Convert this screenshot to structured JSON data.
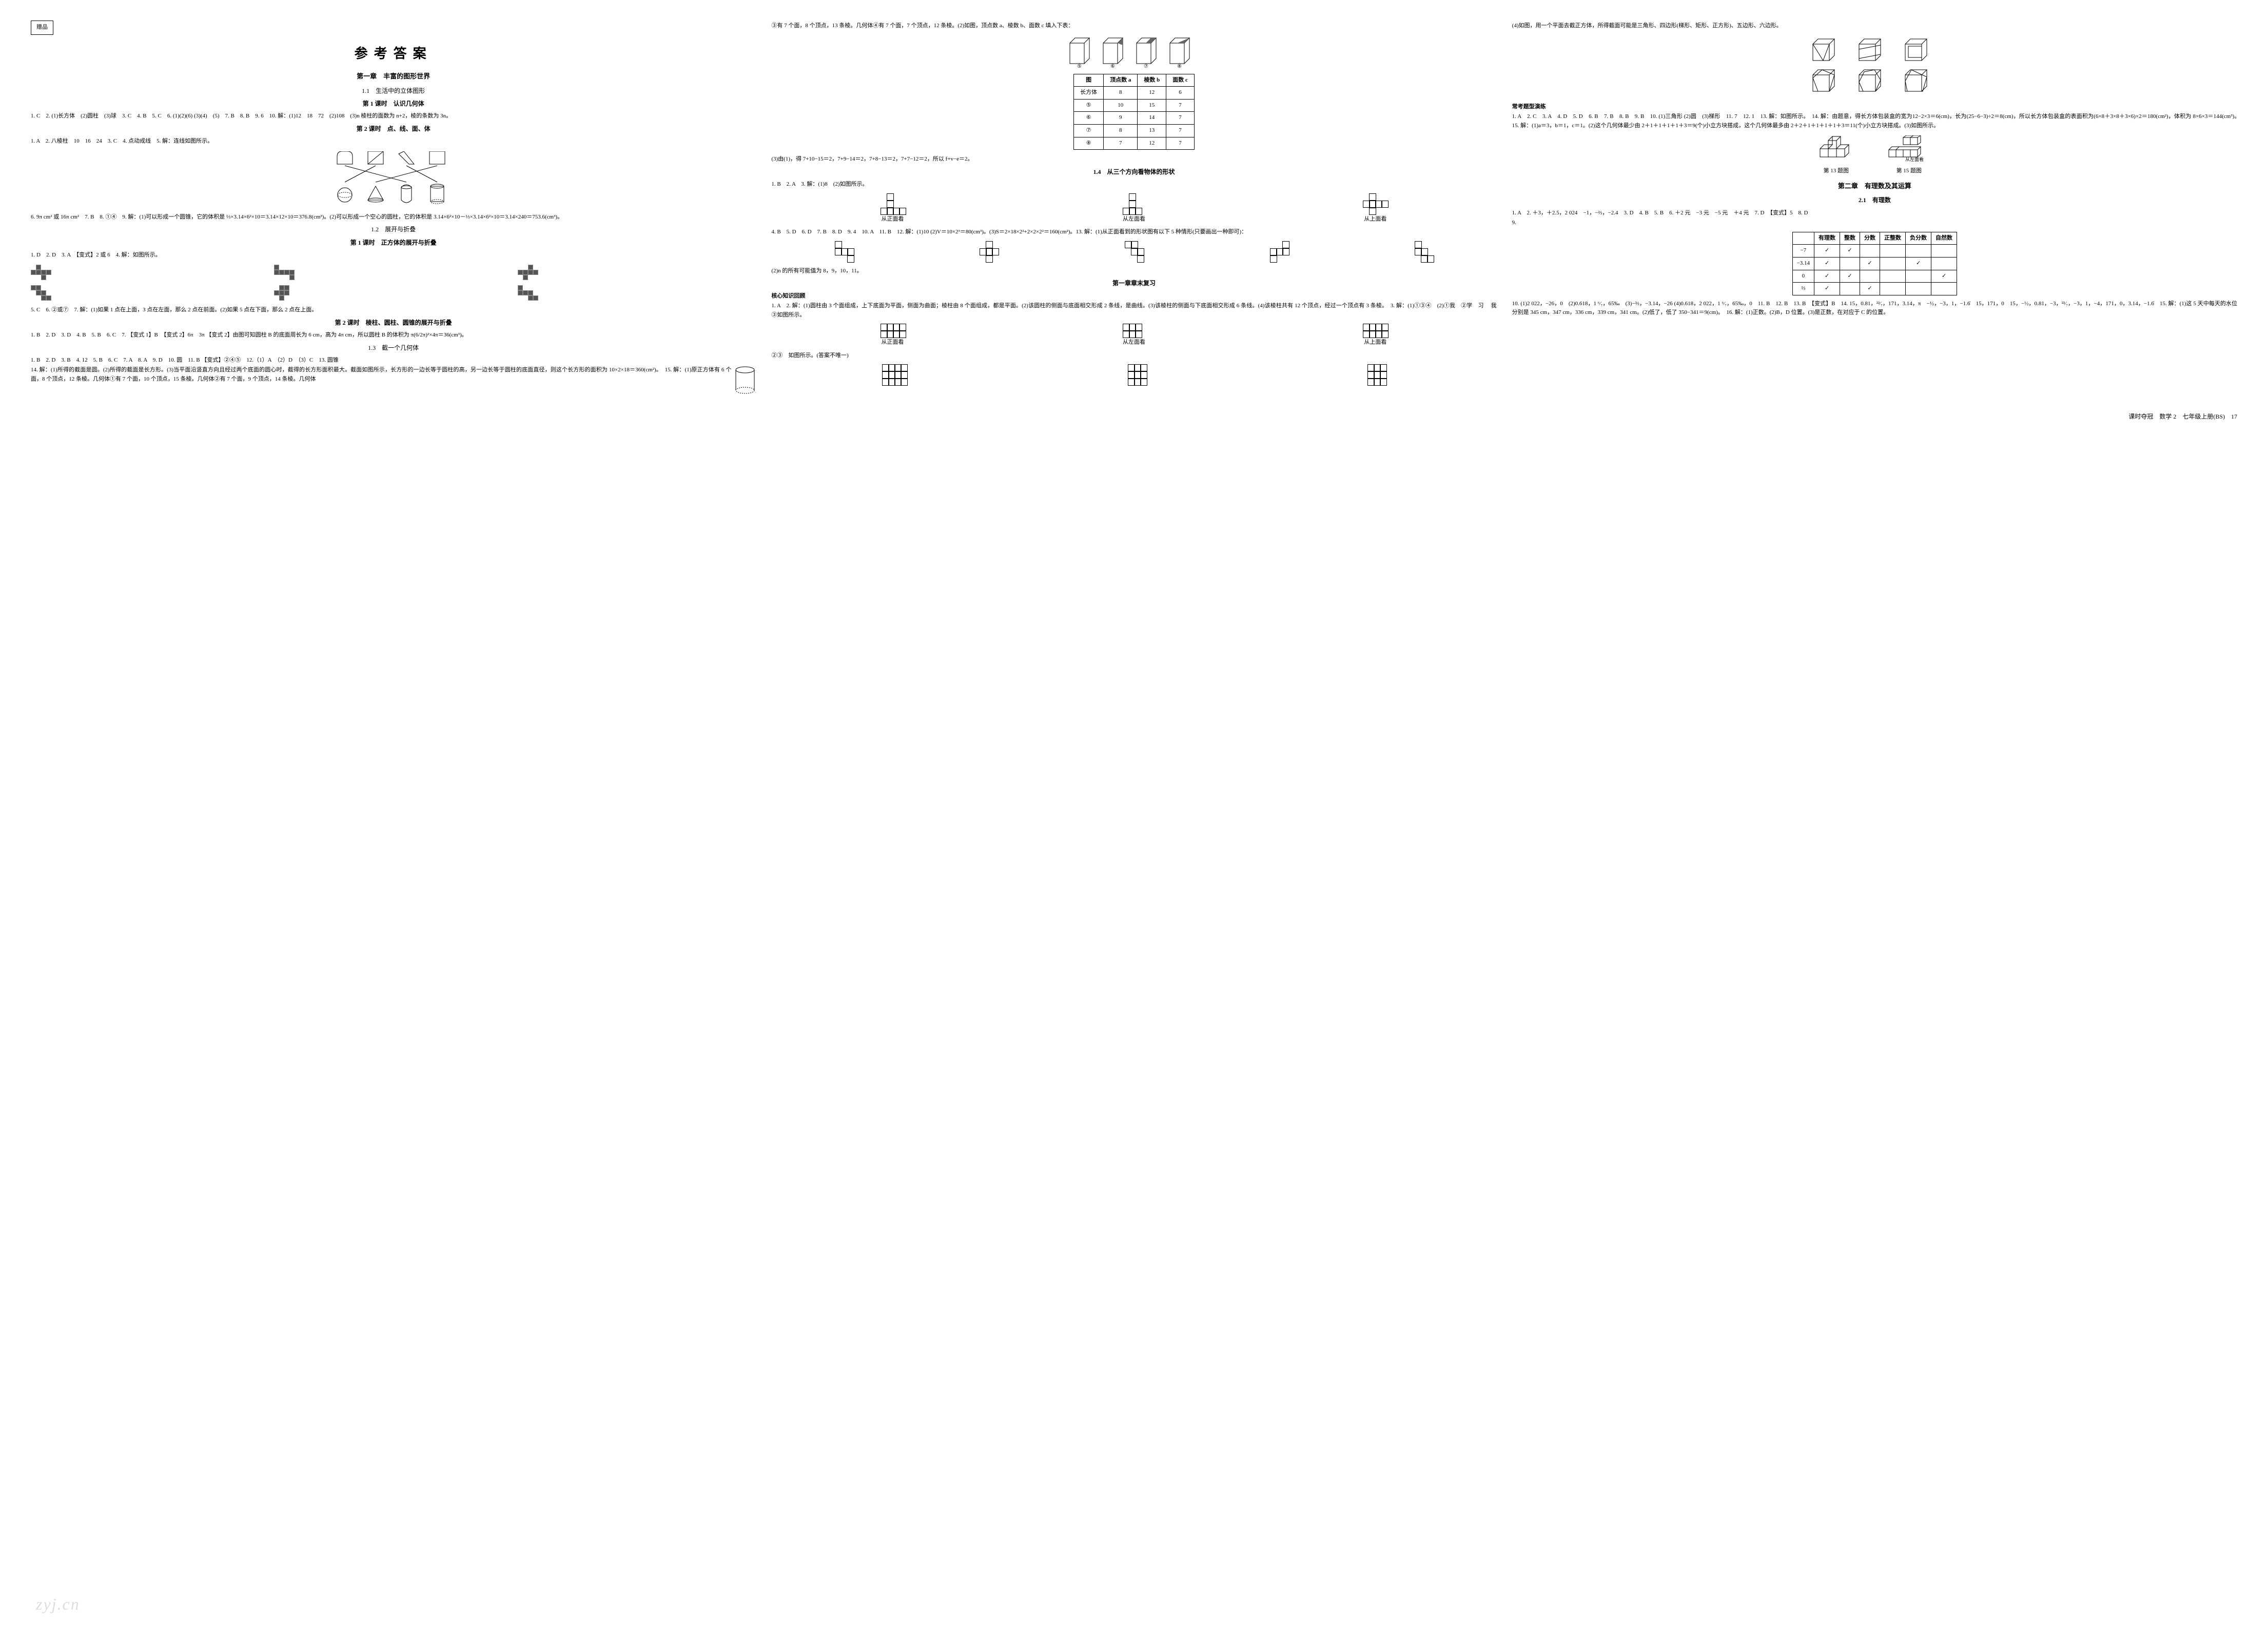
{
  "badge": "赠品",
  "main_title": "参考答案",
  "chapter1": "第一章　丰富的图形世界",
  "sec_1_1": "1.1　生活中的立体图形",
  "lesson_1_1_1": "第 1 课时　认识几何体",
  "ans_1_1_1": "1. C　2. (1)长方体　(2)圆柱　(3)球　3. C　4. B　5. C　6. (1)(2)(6) (3)(4)　(5)　7. B　8. B　9. 6　10. 解：(1)12　18　72　(2)108　(3)n 棱柱的面数为 n+2，棱的条数为 3n。",
  "lesson_1_1_2": "第 2 课时　点、线、面、体",
  "ans_1_1_2a": "1. A　2. 八棱柱　10　16　24　3. C　4. 点动成线　5. 解：连线如图所示。",
  "ans_1_1_2b": "6. 9π cm² 或 16π cm²　7. B　8. ①④　9. 解：(1)可以形成一个圆锥，它的体积是 ⅓×3.14×6²×10＝3.14×12×10＝376.8(cm³)。(2)可以形成一个空心的圆柱，它的体积是 3.14×6²×10－⅓×3.14×6²×10＝3.14×240＝753.6(cm³)。",
  "sec_1_2": "1.2　展开与折叠",
  "lesson_1_2_1": "第 1 课时　正方体的展开与折叠",
  "ans_1_2_1a": "1. D　2. D　3. A　【变式】2 或 6　4. 解：如图所示。",
  "ans_1_2_1b": "5. C　6. ②或⑦　7. 解：(1)如果 1 点在上面，3 点在左面，那么 2 点在前面。(2)如果 5 点在下面，那么 2 点在上面。",
  "lesson_1_2_2": "第 2 课时　棱柱、圆柱、圆锥的展开与折叠",
  "ans_1_2_2": "1. B　2. D　3. D　4. B　5. B　6. C　7. 【变式 1】B　【变式 2】6π　3π 【变式 2】由图可知圆柱 B 的底面周长为 6 cm，高为 4π cm，所以圆柱 B 的体积为 π(6/2π)²×4π＝36(cm³)。",
  "sec_1_3": "1.3　截一个几何体",
  "ans_1_3a": "1. B　2. D　3. B　4. 12　5. B　6. C　7. A　8. A　9. D　10. 圆　11. B 【变式】②④⑤　12.（1）A　（2）D　（3）C　13. 圆锥",
  "ans_1_3b": "14. 解：(1)所得的截面是圆。(2)所得的截面是长方形。(3)当平面沿竖直方向且经过两个底面的圆心时，截得的长方形面积最大。截面如图所示，长方形的一边长等于圆柱的高，另一边长等于圆柱的底面直径，则这个长方形的面积为 10×2×18＝360(cm²)。　15. 解：(1)原正方体有 6 个面，8 个顶点，12 条棱。几何体①有 7 个面，10 个顶点，15 条棱。几何体②有 7 个面，9 个顶点，14 条棱。几何体",
  "col2_top": "③有 7 个面，8 个顶点，13 条棱。几何体④有 7 个面，7 个顶点，12 条棱。(2)如图，顶点数 a、棱数 b、面数 c 填入下表：",
  "table1": {
    "headers": [
      "图",
      "顶点数 a",
      "棱数 b",
      "面数 c"
    ],
    "rows": [
      [
        "长方体",
        "8",
        "12",
        "6"
      ],
      [
        "⑤",
        "10",
        "15",
        "7"
      ],
      [
        "⑥",
        "9",
        "14",
        "7"
      ],
      [
        "⑦",
        "8",
        "13",
        "7"
      ],
      [
        "⑧",
        "7",
        "12",
        "7"
      ]
    ],
    "prism_labels": [
      "⑤",
      "⑥",
      "⑦",
      "⑧"
    ]
  },
  "col2_line2": "(3)由(1)，得 7+10−15＝2，7+9−14＝2，7+8−13＝2，7+7−12＝2，所以 f+v−e＝2。",
  "sec_1_4": "1.4　从三个方向看物体的形状",
  "ans_1_4a": "1. B　2. A　3. 解：(1)8　(2)如图所示。",
  "view_labels": [
    "从正面看",
    "从左面看",
    "从上面看"
  ],
  "ans_1_4b": "4. B　5. D　6. D　7. B　8. D　9. 4　10. A　11. B　12. 解：(1)10 (2)V＝10×2³＝80(cm³)。(3)S＝2×18×2²+2×2×2²＝160(cm²)。13. 解：(1)从正面看到的形状图有以下 5 种情形(只要画出一种即可)：",
  "ans_1_4c": "(2)n 的所有可能值为 8，9，10，11。",
  "review1": "第一章章末复习",
  "core_title": "核心知识回顾",
  "review_a": "1. A　2. 解：(1)圆柱由 3 个面组成，上下底面为平面，侧面为曲面；棱柱由 8 个面组成，都是平面。(2)该圆柱的侧面与底面相交形成 2 条线，是曲线。(3)该棱柱的侧面与下底面相交形成 6 条线。(4)该棱柱共有 12 个顶点，经过一个顶点有 3 条棱。　3. 解：(1)①③④　(2)①我　②学　习 　我　③如图所示。",
  "review_b": "②③　如图所示。(答案不唯一)",
  "col3_top": "(4)如图，用一个平面去截正方体，所得截面可能是三角形、四边形(梯形、矩形、正方形)、五边形、六边形。",
  "exam_title": "常考题型演练",
  "exam_a": "1. A　2. C　3. A　4. D　5. D　6. B　7. B　8. B　9. B　10. (1)三角形 (2)圆　(3)梯形　11. 7　12. 1　13. 解：如图所示。　14. 解：由题意，得长方体包装盒的宽为12−2×3＝6(cm)，长为(25−6−3)÷2＝8(cm)，所以长方体包装盒的表面积为(6×8＋3×8＋3×6)×2＝180(cm²)，体积为 8×6×3＝144(cm³)。　15. 解：(1)a＝3，b＝1，c＝1。(2)这个几何体最少由 2＋1＋1＋1＋1＋3＝9(个)小立方块搭成，这个几何体最多由 2＋2＋1＋1＋1＋1＋3＝11(个)小立方块搭成。(3)如图所示。",
  "fig_labels": [
    "第 13 题图",
    "第 15 题图"
  ],
  "chapter2": "第二章　有理数及其运算",
  "sec_2_1": "2.1　有理数",
  "ans_2_1a": "1. A　2. ＋3，＋2.5，2 024　−1，−⅔，−2.4　3. D　4. B　5. B　6. ＋2 元　−3 元　−5 元　＋4 元　7. D　【变式】5　8. D",
  "ans_2_1_9": "9.",
  "table2": {
    "headers": [
      "",
      "有理数",
      "整数",
      "分数",
      "正整数",
      "负分数",
      "自然数"
    ],
    "rows": [
      [
        "−7",
        "√",
        "√",
        "",
        "",
        "",
        ""
      ],
      [
        "−3.14",
        "√",
        "",
        "√",
        "",
        "√",
        ""
      ],
      [
        "0",
        "√",
        "√",
        "",
        "",
        "",
        "√"
      ],
      [
        "⅔",
        "√",
        "",
        "√",
        "",
        "",
        ""
      ]
    ]
  },
  "ans_2_1b": "10. (1)2 022，−26，0　(2)0.618，1 ⁶⁄₇，65‰　(3)−⅔，−3.14，−26 (4)0.618，2 022，1 ⁶⁄₇，65‰，0　11. B　12. B　13. B　【变式】B　14. 15，0.81，²²⁄₇，171，3.14，π　−½，−3，1，−1.6̇　15，171，0　15，−½，0.81，−3，²²⁄₇，−3，1，−4，171，0，3.14，−1.6̇　15. 解：(1)这 5 天中每天的水位分别是 345 cm，347 cm，336 cm，339 cm，341 cm。(2)低了，低了 350−341＝9(cm)。　16. 解：(1)正数。(2)B，D 位置。(3)是正数，在对应于 C 的位置。",
  "footer_text": "课时夺冠　数学 2　七年级上册(BS)　17",
  "watermark": "zyj.cn",
  "colors": {
    "text": "#000000",
    "bg": "#ffffff",
    "cell_dark": "#555555",
    "watermark": "#dddddd",
    "border": "#000000"
  }
}
